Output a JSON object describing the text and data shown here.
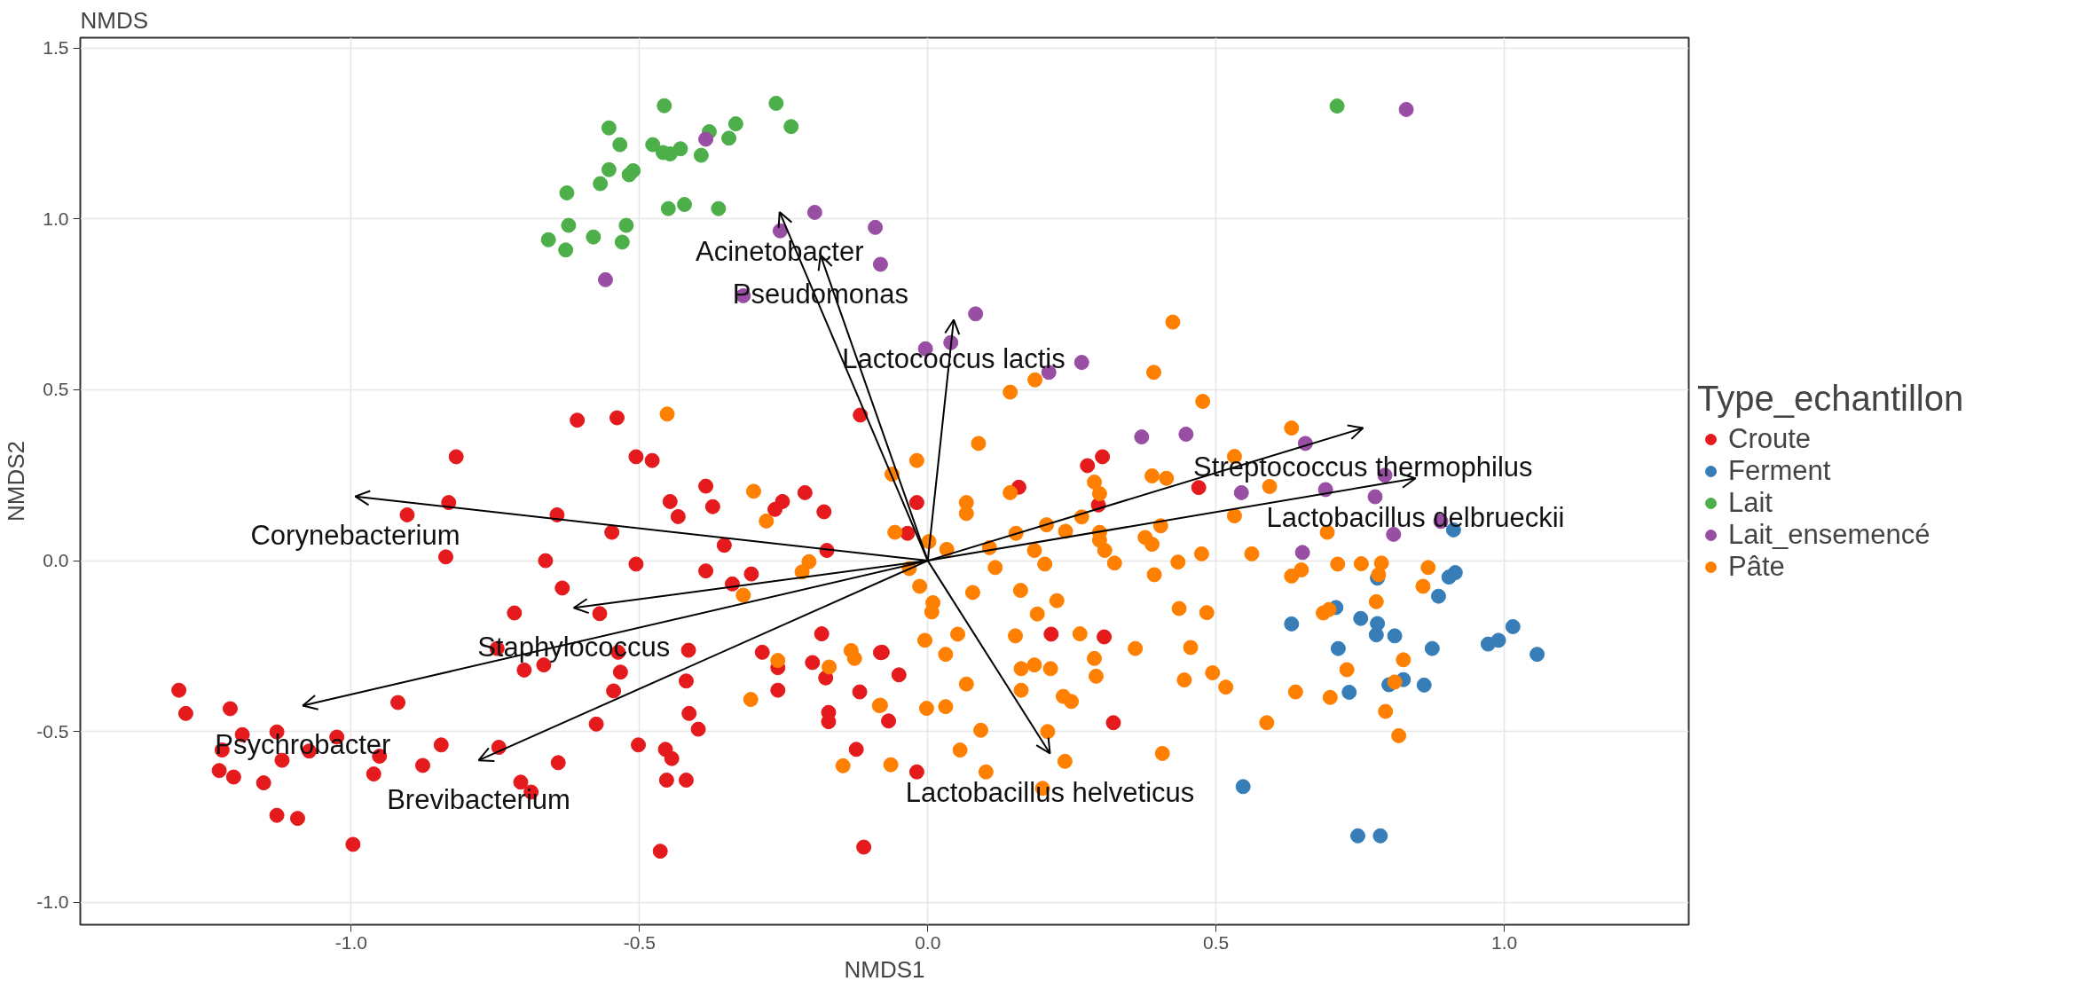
{
  "chart_data": {
    "type": "scatter",
    "title": "NMDS",
    "xlabel": "NMDS1",
    "ylabel": "NMDS2",
    "legend_title": "Type_echantillon",
    "legend": "right",
    "grid": true,
    "marker": "circle",
    "xlim": [
      -1.47,
      1.32
    ],
    "ylim": [
      -1.065,
      1.53
    ],
    "xticks": [
      {
        "value": -1,
        "label": "-1.0"
      },
      {
        "value": -0.5,
        "label": "-0.5"
      },
      {
        "value": 0,
        "label": "0.0"
      },
      {
        "value": 0.5,
        "label": "0.5"
      },
      {
        "value": 1,
        "label": "1.0"
      }
    ],
    "yticks": [
      {
        "value": -1,
        "label": "-1.0"
      },
      {
        "value": -0.5,
        "label": "-0.5"
      },
      {
        "value": 0,
        "label": "0.0"
      },
      {
        "value": 0.5,
        "label": "0.5"
      },
      {
        "value": 1,
        "label": "1.0"
      },
      {
        "value": 1.5,
        "label": "1.5"
      }
    ],
    "series": [
      {
        "name": "Croute",
        "color": "#e41a1c",
        "x": [
          -0.818,
          -0.506,
          -0.478,
          -0.385,
          -0.447,
          -0.373,
          -0.433,
          -0.252,
          -0.265,
          -0.213,
          -0.18,
          -0.831,
          -0.903,
          -0.643,
          -0.548,
          -0.353,
          -0.175,
          -0.836,
          -0.663,
          -0.506,
          -0.385,
          -0.306,
          -0.339,
          -0.634,
          -0.717,
          -0.569,
          -0.184,
          -0.747,
          -0.537,
          -0.415,
          -0.287,
          -0.2,
          -0.26,
          -0.7,
          -0.666,
          -0.533,
          -0.177,
          -0.419,
          -0.545,
          -0.26,
          -0.118,
          -0.079,
          -1.299,
          -1.287,
          -1.21,
          -0.919,
          -0.414,
          -0.172,
          -0.172,
          -0.398,
          -0.575,
          -1.189,
          -1.129,
          -1.025,
          -1.224,
          -1.073,
          -1.12,
          -0.951,
          -0.844,
          -0.744,
          -0.502,
          -0.455,
          -0.444,
          -1.229,
          -1.204,
          -1.152,
          -0.961,
          -0.876,
          -0.641,
          -0.706,
          -0.688,
          -0.453,
          -0.419,
          -0.124,
          -1.129,
          -1.093,
          -0.997,
          -0.464,
          -0.111,
          -0.608,
          -0.539,
          -0.117,
          0.158,
          -0.019,
          -0.035,
          0.296,
          0.277,
          0.303,
          0.47,
          0.214,
          0.306,
          -0.082,
          -0.05,
          -0.068,
          0.322,
          -0.019
        ],
        "values": [
          0.304,
          0.304,
          0.293,
          0.218,
          0.173,
          0.158,
          0.129,
          0.173,
          0.15,
          0.199,
          0.143,
          0.17,
          0.134,
          0.134,
          0.083,
          0.045,
          0.03,
          0.011,
          0.0,
          -0.01,
          -0.03,
          -0.039,
          -0.068,
          -0.08,
          -0.153,
          -0.155,
          -0.214,
          -0.257,
          -0.268,
          -0.262,
          -0.268,
          -0.298,
          -0.313,
          -0.32,
          -0.305,
          -0.326,
          -0.343,
          -0.352,
          -0.381,
          -0.379,
          -0.384,
          -0.268,
          -0.379,
          -0.447,
          -0.433,
          -0.415,
          -0.447,
          -0.444,
          -0.471,
          -0.493,
          -0.478,
          -0.509,
          -0.501,
          -0.516,
          -0.554,
          -0.557,
          -0.584,
          -0.572,
          -0.539,
          -0.546,
          -0.539,
          -0.552,
          -0.579,
          -0.614,
          -0.633,
          -0.65,
          -0.624,
          -0.599,
          -0.591,
          -0.648,
          -0.677,
          -0.642,
          -0.642,
          -0.552,
          -0.745,
          -0.754,
          -0.83,
          -0.85,
          -0.838,
          0.411,
          0.418,
          0.426,
          0.215,
          0.17,
          0.08,
          0.163,
          0.278,
          0.304,
          0.214,
          -0.215,
          -0.223,
          -0.269,
          -0.334,
          -0.469,
          -0.474,
          -0.618
        ]
      },
      {
        "name": "Ferment",
        "color": "#377eb8",
        "x": [
          0.912,
          0.78,
          0.904,
          0.915,
          0.886,
          0.708,
          0.631,
          0.751,
          0.78,
          0.778,
          0.81,
          1.015,
          0.99,
          0.972,
          1.057,
          0.712,
          0.875,
          0.731,
          0.8,
          0.825,
          0.861,
          0.547,
          0.746,
          0.785
        ],
        "values": [
          0.09,
          -0.051,
          -0.048,
          -0.035,
          -0.104,
          -0.137,
          -0.185,
          -0.169,
          -0.184,
          -0.217,
          -0.22,
          -0.193,
          -0.233,
          -0.244,
          -0.274,
          -0.257,
          -0.257,
          -0.385,
          -0.363,
          -0.348,
          -0.364,
          -0.661,
          -0.805,
          -0.805
        ]
      },
      {
        "name": "Lait",
        "color": "#4daf4a",
        "x": [
          -0.457,
          -0.553,
          -0.534,
          -0.477,
          -0.429,
          -0.379,
          -0.333,
          -0.345,
          -0.263,
          -0.237,
          -0.553,
          -0.511,
          -0.459,
          -0.447,
          -0.393,
          -0.568,
          -0.518,
          -0.626,
          -0.45,
          -0.422,
          -0.363,
          -0.623,
          -0.58,
          -0.523,
          -0.53,
          -0.658,
          -0.628,
          0.71
        ],
        "values": [
          1.331,
          1.266,
          1.217,
          1.217,
          1.205,
          1.255,
          1.278,
          1.236,
          1.338,
          1.27,
          1.144,
          1.141,
          1.194,
          1.19,
          1.186,
          1.103,
          1.129,
          1.076,
          1.03,
          1.042,
          1.03,
          0.981,
          0.947,
          0.981,
          0.932,
          0.939,
          0.909,
          1.33
        ]
      },
      {
        "name": "Lait_ensemencé",
        "color": "#984ea3",
        "x": [
          -0.385,
          -0.196,
          -0.256,
          -0.091,
          -0.082,
          -0.559,
          -0.32,
          0.083,
          -0.004,
          0.04,
          0.21,
          0.267,
          0.371,
          0.448,
          0.655,
          0.793,
          0.83,
          0.544,
          0.69,
          0.776,
          0.808,
          0.65,
          0.89
        ],
        "values": [
          1.233,
          1.019,
          0.965,
          0.975,
          0.867,
          0.822,
          0.775,
          0.722,
          0.62,
          0.638,
          0.551,
          0.58,
          0.362,
          0.37,
          0.343,
          0.25,
          1.32,
          0.199,
          0.208,
          0.187,
          0.077,
          0.024,
          0.115
        ]
      },
      {
        "name": "Pâte",
        "color": "#ff7f00",
        "x": [
          -0.019,
          -0.062,
          0.067,
          0.067,
          0.143,
          -0.057,
          0.002,
          0.033,
          0.107,
          0.153,
          0.206,
          0.239,
          0.267,
          0.289,
          0.298,
          0.298,
          0.298,
          0.307,
          0.324,
          0.185,
          0.203,
          0.117,
          -0.032,
          -0.014,
          0.078,
          0.161,
          0.224,
          0.009,
          0.007,
          0.19,
          0.052,
          -0.005,
          0.152,
          0.031,
          0.264,
          0.289,
          0.36,
          0.436,
          0.484,
          0.456,
          0.162,
          0.185,
          0.213,
          0.292,
          0.067,
          0.445,
          0.494,
          0.517,
          0.162,
          0.235,
          0.249,
          -0.084,
          -0.002,
          0.031,
          0.092,
          0.208,
          0.056,
          -0.064,
          0.101,
          0.238,
          0.407,
          0.199,
          0.588,
          0.377,
          0.389,
          0.404,
          0.393,
          0.434,
          0.475,
          0.562,
          0.631,
          0.648,
          0.693,
          0.711,
          0.752,
          0.787,
          0.782,
          0.868,
          0.859,
          0.778,
          0.686,
          0.696,
          0.825,
          0.727,
          0.81,
          0.638,
          0.698,
          0.794,
          0.817,
          0.389,
          0.414,
          0.593,
          0.532,
          0.425,
          0.392,
          0.477,
          0.631,
          0.186,
          0.143,
          0.088,
          0.532,
          -0.452,
          -0.302,
          -0.28,
          -0.218,
          -0.206,
          -0.32,
          -0.133,
          -0.127,
          -0.171,
          -0.26,
          -0.307,
          -0.082,
          -0.147
        ],
        "values": [
          0.293,
          0.253,
          0.17,
          0.138,
          0.199,
          0.083,
          0.056,
          0.033,
          0.038,
          0.08,
          0.105,
          0.086,
          0.128,
          0.23,
          0.196,
          0.083,
          0.06,
          0.03,
          -0.007,
          0.03,
          -0.01,
          -0.02,
          -0.023,
          -0.075,
          -0.093,
          -0.087,
          -0.117,
          -0.123,
          -0.15,
          -0.156,
          -0.215,
          -0.233,
          -0.22,
          -0.274,
          -0.214,
          -0.286,
          -0.257,
          -0.14,
          -0.152,
          -0.254,
          -0.316,
          -0.305,
          -0.316,
          -0.338,
          -0.361,
          -0.349,
          -0.328,
          -0.37,
          -0.379,
          -0.397,
          -0.412,
          -0.424,
          -0.432,
          -0.427,
          -0.496,
          -0.5,
          -0.554,
          -0.597,
          -0.618,
          -0.587,
          -0.564,
          -0.666,
          -0.474,
          0.068,
          0.048,
          0.102,
          -0.041,
          -0.004,
          0.02,
          0.02,
          -0.045,
          -0.027,
          0.083,
          -0.01,
          -0.009,
          -0.007,
          -0.041,
          -0.02,
          -0.075,
          -0.12,
          -0.153,
          -0.143,
          -0.29,
          -0.319,
          -0.355,
          -0.384,
          -0.4,
          -0.441,
          -0.512,
          0.248,
          0.241,
          0.217,
          0.131,
          0.698,
          0.551,
          0.466,
          0.388,
          0.529,
          0.493,
          0.343,
          0.305,
          0.429,
          0.203,
          0.116,
          -0.033,
          -0.003,
          -0.101,
          -0.263,
          -0.286,
          -0.311,
          -0.292,
          -0.406,
          -0.423,
          -0.6
        ]
      },
      {
        "type": "line",
        "marker": "none",
        "color": "#000000",
        "x": [
          0,
          -0.257
        ],
        "values": [
          0,
          1.02
        ]
      },
      {
        "type": "line",
        "marker": "none",
        "color": "#000000",
        "x": [
          0,
          -0.186
        ],
        "values": [
          0,
          0.894
        ]
      },
      {
        "type": "line",
        "marker": "none",
        "color": "#000000",
        "x": [
          0,
          0.045
        ],
        "values": [
          0,
          0.705
        ]
      },
      {
        "type": "line",
        "marker": "none",
        "color": "#000000",
        "x": [
          0,
          0.755
        ],
        "values": [
          0,
          0.388
        ]
      },
      {
        "type": "line",
        "marker": "none",
        "color": "#000000",
        "x": [
          0,
          0.846
        ],
        "values": [
          0,
          0.241
        ]
      },
      {
        "type": "line",
        "marker": "none",
        "color": "#000000",
        "x": [
          0,
          0.212
        ],
        "values": [
          0,
          -0.564
        ]
      },
      {
        "type": "line",
        "marker": "none",
        "color": "#000000",
        "x": [
          0,
          -0.993
        ],
        "values": [
          0,
          0.188
        ]
      },
      {
        "type": "line",
        "marker": "none",
        "color": "#000000",
        "x": [
          0,
          -0.614
        ],
        "values": [
          0,
          -0.138
        ]
      },
      {
        "type": "line",
        "marker": "none",
        "color": "#000000",
        "x": [
          0,
          -1.084
        ],
        "values": [
          0,
          -0.424
        ]
      },
      {
        "type": "line",
        "marker": "none",
        "color": "#000000",
        "x": [
          0,
          -0.779
        ],
        "values": [
          0,
          -0.584
        ]
      }
    ],
    "annotations": [
      "Acinetobacter",
      "Pseudomonas",
      "Lactococcus lactis",
      "Streptococcus thermophilus",
      "Lactobacillus delbrueckii",
      "Lactobacillus helveticus",
      "Corynebacterium",
      "Staphylococcus",
      "Psychrobacter",
      "Brevibacterium"
    ]
  }
}
